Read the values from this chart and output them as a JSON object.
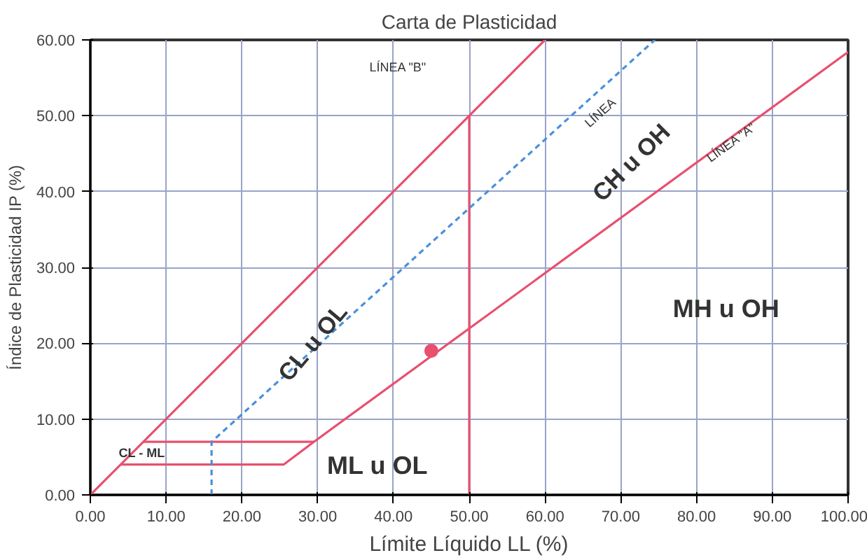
{
  "chart_data": {
    "type": "line",
    "title": "Carta de Plasticidad",
    "xlabel": "Límite Líquido LL (%)",
    "ylabel": "Índice de Plasticidad IP (%)",
    "series": [
      {
        "color": "#e8506e",
        "x": [
          0,
          60
        ],
        "values": [
          0,
          60
        ]
      },
      {
        "color": "#e8506e",
        "x": [
          7,
          29.5
        ],
        "values": [
          7,
          7
        ]
      },
      {
        "color": "#e8506e",
        "x": [
          4,
          25.5,
          29.5,
          100
        ],
        "values": [
          4,
          4,
          7,
          58.4
        ]
      },
      {
        "color": "#e8506e",
        "x": [
          50,
          50
        ],
        "values": [
          0,
          50
        ]
      },
      {
        "color": "#4a90d9",
        "x": [
          16,
          16,
          74.5
        ],
        "values": [
          0,
          7,
          60
        ],
        "line_style": "dashed"
      },
      {
        "type": "scatter",
        "color": "#e8506e",
        "x": [
          45
        ],
        "values": [
          19
        ],
        "marker": "circle"
      }
    ],
    "xlim": [
      0,
      100
    ],
    "ylim": [
      0,
      60
    ],
    "xticks": [
      {
        "value": 0,
        "label": "0.00"
      },
      {
        "value": 10,
        "label": "10.00"
      },
      {
        "value": 20,
        "label": "20.00"
      },
      {
        "value": 30,
        "label": "30.00"
      },
      {
        "value": 40,
        "label": "40.00"
      },
      {
        "value": 50,
        "label": "50.00"
      },
      {
        "value": 60,
        "label": "60.00"
      },
      {
        "value": 70,
        "label": "70.00"
      },
      {
        "value": 80,
        "label": "80.00"
      },
      {
        "value": 90,
        "label": "90.00"
      },
      {
        "value": 100,
        "label": "100.00"
      }
    ],
    "yticks": [
      {
        "value": 0,
        "label": "0.00"
      },
      {
        "value": 10,
        "label": "10.00"
      },
      {
        "value": 20,
        "label": "20.00"
      },
      {
        "value": 30,
        "label": "30.00"
      },
      {
        "value": 40,
        "label": "40.00"
      },
      {
        "value": 50,
        "label": "50.00"
      },
      {
        "value": 60,
        "label": "60.00"
      }
    ],
    "grid": true,
    "annotations": [
      "LÍNEA \"B\"",
      "LÍNEA",
      "CH u OH",
      {
        "text": "LÍNEA \"A\"",
        "x": 84.6,
        "y": 46.5
      },
      {
        "text": "CL u OL",
        "x": 29.4,
        "y": 20.1
      },
      "MH u OH",
      "ML u OL",
      {
        "text": "CL - ML",
        "x": 6.8,
        "y": 5.5
      }
    ]
  }
}
